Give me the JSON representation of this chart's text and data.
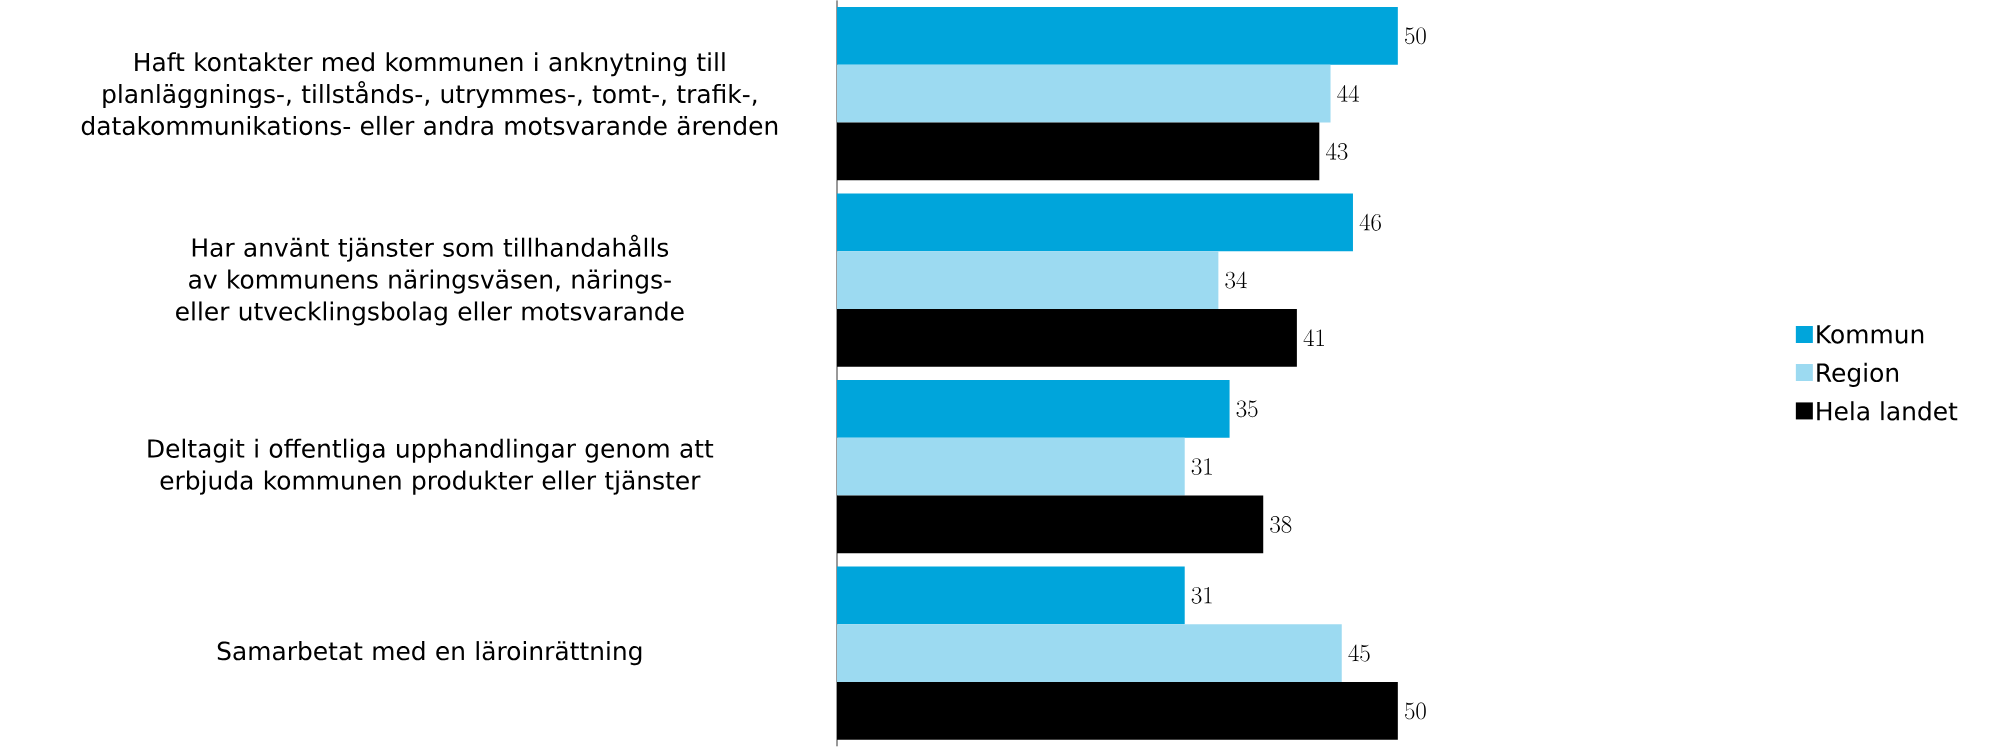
{
  "chart_data": {
    "type": "bar",
    "orientation": "horizontal",
    "categories": [
      "Haft kontakter med kommunen i anknytning till planläggnings-, tillstånds-, utrymmes-, tomt-, trafik-, datakommunikations- eller andra motsvarande ärenden",
      "Har använt tjänster som tillhandahålls av kommunens näringsväsen, närings- eller utvecklingsbolag eller motsvarande",
      "Deltagit i offentliga upphandlingar genom att erbjuda kommunen produkter eller tjänster",
      "Samarbetat med en läroinrättning"
    ],
    "series": [
      {
        "name": "Kommun",
        "color": "#00a5db",
        "values": [
          50,
          46,
          35,
          31
        ]
      },
      {
        "name": "Region",
        "color": "#9cdaf1",
        "values": [
          44,
          34,
          31,
          45
        ]
      },
      {
        "name": "Hela landet",
        "color": "#000000",
        "values": [
          43,
          41,
          38,
          50
        ]
      }
    ],
    "data_labels": true,
    "legend": "right"
  }
}
